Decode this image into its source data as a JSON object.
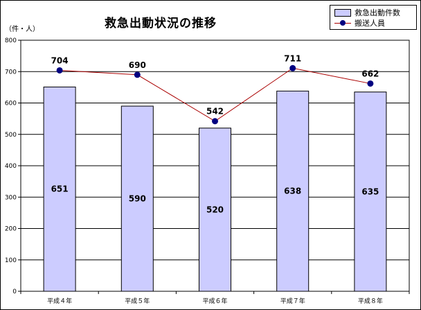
{
  "chart_data": {
    "type": "bar",
    "title": "救急出動状況の推移",
    "unit_label": "（件・人）",
    "categories": [
      "平成４年",
      "平成５年",
      "平成６年",
      "平成７年",
      "平成８年"
    ],
    "series": [
      {
        "name": "救急出動件数",
        "type": "bar",
        "values": [
          651,
          590,
          520,
          638,
          635
        ],
        "color": "#ccccff"
      },
      {
        "name": "搬送人員",
        "type": "line",
        "values": [
          704,
          690,
          542,
          711,
          662
        ],
        "color": "#aa0000",
        "marker_color": "#000080"
      }
    ],
    "ylim": [
      0,
      800
    ],
    "yticks": [
      0,
      100,
      200,
      300,
      400,
      500,
      600,
      700,
      800
    ],
    "grid": true,
    "legend_position": "top-right",
    "plot_background": "#ffffff"
  }
}
